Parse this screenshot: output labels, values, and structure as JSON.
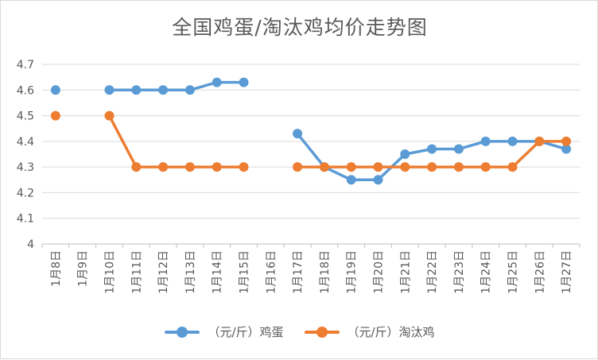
{
  "chart_data": {
    "type": "line",
    "title": "全国鸡蛋/淘汰鸡均价走势图",
    "categories": [
      "1月8日",
      "1月9日",
      "1月10日",
      "1月11日",
      "1月12日",
      "1月13日",
      "1月14日",
      "1月15日",
      "1月16日",
      "1月17日",
      "1月18日",
      "1月19日",
      "1月20日",
      "1月21日",
      "1月22日",
      "1月23日",
      "1月24日",
      "1月25日",
      "1月26日",
      "1月27日"
    ],
    "series": [
      {
        "name": "（元/斤）鸡蛋",
        "color": "#5b9bd5",
        "values": [
          4.6,
          null,
          4.6,
          4.6,
          4.6,
          4.6,
          4.63,
          4.63,
          null,
          4.43,
          4.3,
          4.25,
          4.25,
          4.35,
          4.37,
          4.37,
          4.4,
          4.4,
          4.4,
          4.37
        ]
      },
      {
        "name": "（元/斤）淘汰鸡",
        "color": "#ed7d31",
        "values": [
          4.5,
          null,
          4.5,
          4.3,
          4.3,
          4.3,
          4.3,
          4.3,
          null,
          4.3,
          4.3,
          4.3,
          4.3,
          4.3,
          4.3,
          4.3,
          4.3,
          4.3,
          4.4,
          4.4
        ]
      }
    ],
    "yticks": [
      "4",
      "4.1",
      "4.2",
      "4.3",
      "4.4",
      "4.5",
      "4.6",
      "4.7"
    ],
    "ylim": [
      4,
      4.7
    ],
    "grid": true,
    "legend": "bottom",
    "xlabel": "",
    "ylabel": ""
  }
}
